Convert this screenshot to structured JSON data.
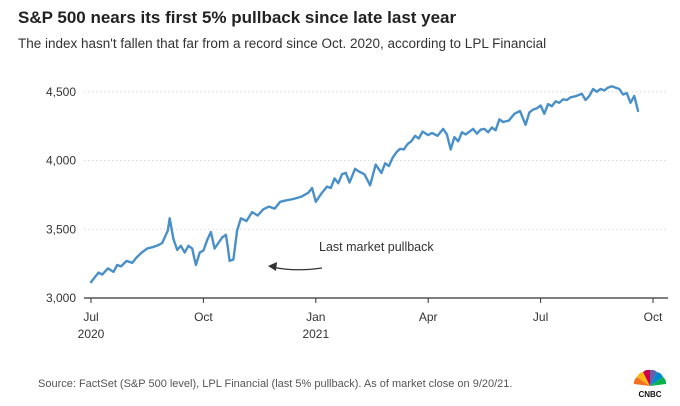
{
  "header": {
    "title": "S&P 500 nears its first 5% pullback since late last year",
    "subtitle": "The index hasn't fallen that far from a record since Oct. 2020, according to LPL Financial"
  },
  "footer": {
    "source": "Source: FactSet (S&P 500 level), LPL Financial (last 5% pullback). As of market close on 9/20/21.",
    "logo_text": "CNBC"
  },
  "colors": {
    "line": "#4a90c8",
    "grid": "#d9d9d9",
    "axis": "#333333"
  },
  "chart_data": {
    "type": "line",
    "title": "S&P 500 nears its first 5% pullback since late last year",
    "subtitle": "The index hasn't fallen that far from a record since Oct. 2020, according to LPL Financial",
    "xlabel": "",
    "ylabel": "",
    "ylim": [
      3000,
      4600
    ],
    "yticks": [
      3000,
      3500,
      4000,
      4500
    ],
    "ytick_labels": [
      "3,000",
      "3,500",
      "4,000",
      "4,500"
    ],
    "xlim": [
      0,
      15
    ],
    "xticks": [
      {
        "value": 0,
        "label": "Jul",
        "sublabel": "2020"
      },
      {
        "value": 3,
        "label": "Oct",
        "sublabel": ""
      },
      {
        "value": 6,
        "label": "Jan",
        "sublabel": "2021"
      },
      {
        "value": 9,
        "label": "Apr",
        "sublabel": ""
      },
      {
        "value": 12,
        "label": "Jul",
        "sublabel": ""
      },
      {
        "value": 15,
        "label": "Oct",
        "sublabel": ""
      }
    ],
    "grid": true,
    "annotation": {
      "text": "Last market pullback",
      "x": 4.9,
      "y": 3230
    },
    "series": [
      {
        "name": "S&P 500 level",
        "x": [
          0.0,
          0.1,
          0.2,
          0.3,
          0.45,
          0.6,
          0.7,
          0.8,
          0.95,
          1.1,
          1.2,
          1.35,
          1.5,
          1.65,
          1.8,
          1.9,
          2.0,
          2.05,
          2.1,
          2.2,
          2.3,
          2.4,
          2.5,
          2.6,
          2.7,
          2.75,
          2.8,
          2.9,
          3.0,
          3.1,
          3.2,
          3.3,
          3.4,
          3.5,
          3.6,
          3.65,
          3.7,
          3.8,
          3.9,
          4.0,
          4.15,
          4.3,
          4.45,
          4.6,
          4.75,
          4.9,
          5.05,
          5.2,
          5.4,
          5.6,
          5.8,
          5.9,
          6.0,
          6.15,
          6.3,
          6.4,
          6.5,
          6.6,
          6.7,
          6.8,
          6.9,
          7.05,
          7.15,
          7.3,
          7.45,
          7.6,
          7.75,
          7.85,
          7.95,
          8.05,
          8.15,
          8.25,
          8.35,
          8.45,
          8.55,
          8.65,
          8.75,
          8.85,
          9.0,
          9.1,
          9.25,
          9.4,
          9.5,
          9.6,
          9.7,
          9.8,
          9.9,
          10.0,
          10.1,
          10.2,
          10.3,
          10.4,
          10.5,
          10.6,
          10.7,
          10.8,
          10.9,
          11.0,
          11.15,
          11.3,
          11.45,
          11.6,
          11.7,
          11.8,
          11.9,
          12.0,
          12.1,
          12.2,
          12.3,
          12.4,
          12.5,
          12.6,
          12.7,
          12.8,
          12.9,
          13.0,
          13.1,
          13.2,
          13.3,
          13.4,
          13.5,
          13.6,
          13.7,
          13.8,
          13.9,
          14.0,
          14.1,
          14.2,
          14.3,
          14.4,
          14.5,
          14.6
        ],
        "values": [
          3115,
          3150,
          3185,
          3170,
          3215,
          3190,
          3240,
          3230,
          3270,
          3255,
          3290,
          3330,
          3360,
          3370,
          3385,
          3400,
          3460,
          3490,
          3580,
          3430,
          3350,
          3380,
          3330,
          3380,
          3360,
          3300,
          3240,
          3330,
          3345,
          3420,
          3480,
          3360,
          3400,
          3440,
          3460,
          3370,
          3270,
          3280,
          3490,
          3580,
          3560,
          3625,
          3600,
          3645,
          3665,
          3650,
          3700,
          3710,
          3720,
          3735,
          3765,
          3800,
          3700,
          3760,
          3810,
          3800,
          3870,
          3835,
          3900,
          3910,
          3840,
          3940,
          3920,
          3900,
          3820,
          3970,
          3910,
          3980,
          3960,
          4020,
          4060,
          4085,
          4080,
          4120,
          4140,
          4180,
          4160,
          4210,
          4185,
          4200,
          4180,
          4230,
          4190,
          4080,
          4170,
          4140,
          4205,
          4190,
          4210,
          4230,
          4195,
          4225,
          4230,
          4205,
          4240,
          4220,
          4300,
          4280,
          4290,
          4340,
          4360,
          4260,
          4350,
          4370,
          4380,
          4400,
          4340,
          4410,
          4395,
          4430,
          4420,
          4445,
          4440,
          4460,
          4465,
          4475,
          4485,
          4440,
          4470,
          4520,
          4500,
          4520,
          4510,
          4530,
          4540,
          4530,
          4520,
          4480,
          4490,
          4420,
          4470,
          4360
        ]
      }
    ]
  }
}
